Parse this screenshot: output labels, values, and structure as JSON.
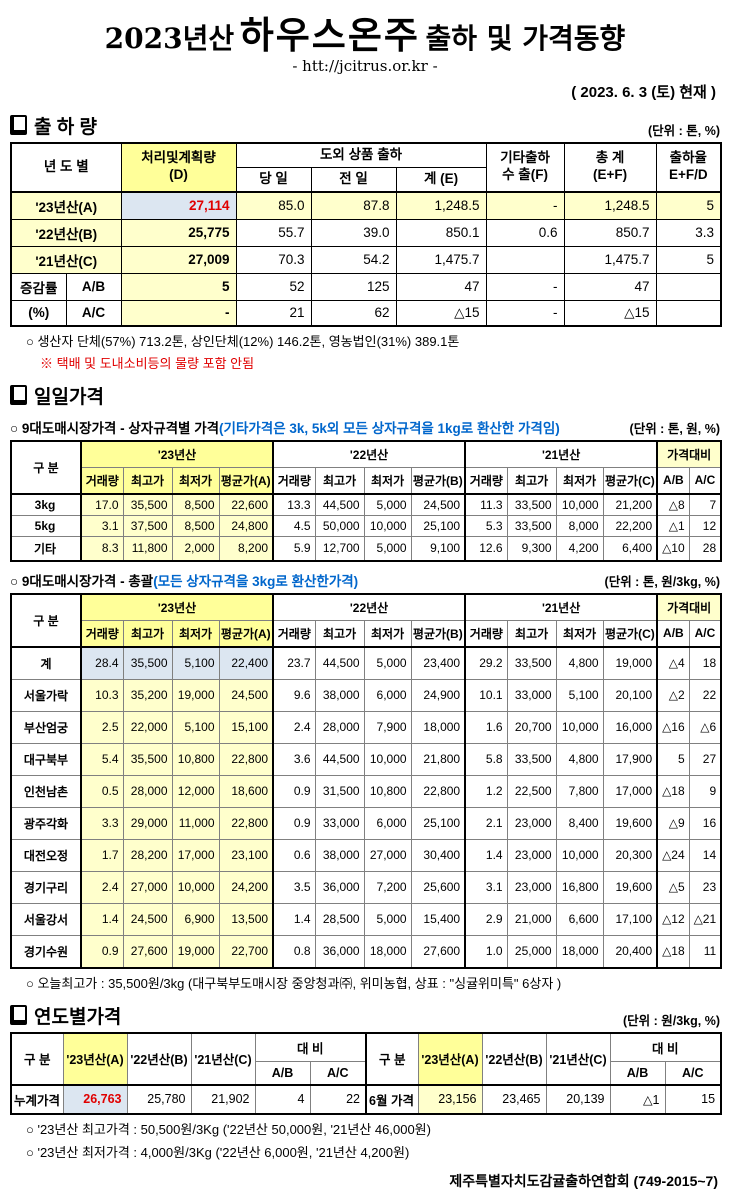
{
  "header": {
    "title_year": "2023년산",
    "title_product": "하우스온주",
    "title_rest": "출하 및 가격동향",
    "url": "- htt://jcitrus.or.kr -",
    "date": "( 2023. 6. 3 (토) 현재 )"
  },
  "shipment": {
    "heading": "출 하 량",
    "unit": "(단위 : 톤, %)",
    "headers": {
      "year": "년 도 별",
      "plan_l1": "처리및계획량",
      "plan_l2": "(D)",
      "group": "도외 상품 출하",
      "day": "당 일",
      "prev": "전 일",
      "sum": "계 (E)",
      "etc_l1": "기타출하",
      "etc_l2": "수 출(F)",
      "total_l1": "총  계",
      "total_l2": "(E+F)",
      "rate_l1": "출하율",
      "rate_l2": "E+F/D"
    },
    "rows": [
      {
        "label": "'23년산(A)",
        "current": true,
        "cells": [
          "27,114",
          "85.0",
          "87.8",
          "1,248.5",
          "-",
          "1,248.5",
          "5"
        ]
      },
      {
        "label": "'22년산(B)",
        "cells": [
          "25,775",
          "55.7",
          "39.0",
          "850.1",
          "0.6",
          "850.7",
          "3.3"
        ]
      },
      {
        "label": "'21년산(C)",
        "cells": [
          "27,009",
          "70.3",
          "54.2",
          "1,475.7",
          "",
          "1,475.7",
          "5"
        ]
      }
    ],
    "change_rows": [
      {
        "labels": [
          "증감률",
          "A/B"
        ],
        "cells": [
          "5",
          "52",
          "125",
          "47",
          "-",
          "47",
          ""
        ]
      },
      {
        "labels": [
          "(%)",
          "A/C"
        ],
        "cells": [
          "-",
          "21",
          "62",
          "△15",
          "-",
          "△15",
          ""
        ]
      }
    ],
    "note1": "○ 생산자 단체(57%) 713.2톤,  상인단체(12%) 146.2톤, 영농법인(31%) 389.1톤",
    "note2": "※ 택배 및 도내소비등의 물량 포함 안됨"
  },
  "daily": {
    "heading": "일일가격",
    "price_headers": {
      "gubun": "구  분",
      "y23": "'23년산",
      "y22": "'22년산",
      "y21": "'21년산",
      "cmp": "가격대비",
      "qty": "거래량",
      "high": "최고가",
      "low": "최저가",
      "avg_a": "평균가(A)",
      "avg_b": "평균가(B)",
      "avg_c": "평균가(C)",
      "ab": "A/B",
      "ac": "A/C"
    },
    "by_size": {
      "title": "○ 9대도매시장가격 - 상자규격별 가격",
      "title_note": "(기타가격은 3k, 5k외 모든 상자규격을 1kg로 환산한 가격임)",
      "unit": "(단위 : 톤,  원, %)",
      "rows": [
        {
          "label": "3kg",
          "cells": [
            "17.0",
            "35,500",
            "8,500",
            "22,600",
            "13.3",
            "44,500",
            "5,000",
            "24,500",
            "11.3",
            "33,500",
            "10,000",
            "21,200",
            "△8",
            "7"
          ]
        },
        {
          "label": "5kg",
          "cells": [
            "3.1",
            "37,500",
            "8,500",
            "24,800",
            "4.5",
            "50,000",
            "10,000",
            "25,100",
            "5.3",
            "33,500",
            "8,000",
            "22,200",
            "△1",
            "12"
          ]
        },
        {
          "label": "기타",
          "cells": [
            "8.3",
            "11,800",
            "2,000",
            "8,200",
            "5.9",
            "12,700",
            "5,000",
            "9,100",
            "12.6",
            "9,300",
            "4,200",
            "6,400",
            "△10",
            "28"
          ]
        }
      ]
    },
    "overall": {
      "title": "○ 9대도매시장가격 - 총괄",
      "title_note": "(모든 상자규격을 3kg로 환산한가격)",
      "unit": "(단위 : 톤, 원/3kg, %)",
      "rows": [
        {
          "label": "계",
          "highlight": true,
          "cells": [
            "28.4",
            "35,500",
            "5,100",
            "22,400",
            "23.7",
            "44,500",
            "5,000",
            "23,400",
            "29.2",
            "33,500",
            "4,800",
            "19,000",
            "△4",
            "18"
          ]
        },
        {
          "label": "서울가락",
          "cells": [
            "10.3",
            "35,200",
            "19,000",
            "24,500",
            "9.6",
            "38,000",
            "6,000",
            "24,900",
            "10.1",
            "33,000",
            "5,100",
            "20,100",
            "△2",
            "22"
          ]
        },
        {
          "label": "부산엄궁",
          "cells": [
            "2.5",
            "22,000",
            "5,100",
            "15,100",
            "2.4",
            "28,000",
            "7,900",
            "18,000",
            "1.6",
            "20,700",
            "10,000",
            "16,000",
            "△16",
            "△6"
          ]
        },
        {
          "label": "대구북부",
          "cells": [
            "5.4",
            "35,500",
            "10,800",
            "22,800",
            "3.6",
            "44,500",
            "10,000",
            "21,800",
            "5.8",
            "33,500",
            "4,800",
            "17,900",
            "5",
            "27"
          ]
        },
        {
          "label": "인천남촌",
          "cells": [
            "0.5",
            "28,000",
            "12,000",
            "18,600",
            "0.9",
            "31,500",
            "10,800",
            "22,800",
            "1.2",
            "22,500",
            "7,800",
            "17,000",
            "△18",
            "9"
          ]
        },
        {
          "label": "광주각화",
          "cells": [
            "3.3",
            "29,000",
            "11,000",
            "22,800",
            "0.9",
            "33,000",
            "6,000",
            "25,100",
            "2.1",
            "23,000",
            "8,400",
            "19,600",
            "△9",
            "16"
          ]
        },
        {
          "label": "대전오정",
          "cells": [
            "1.7",
            "28,200",
            "17,000",
            "23,100",
            "0.6",
            "38,000",
            "27,000",
            "30,400",
            "1.4",
            "23,000",
            "10,000",
            "20,300",
            "△24",
            "14"
          ]
        },
        {
          "label": "경기구리",
          "cells": [
            "2.4",
            "27,000",
            "10,000",
            "24,200",
            "3.5",
            "36,000",
            "7,200",
            "25,600",
            "3.1",
            "23,000",
            "16,800",
            "19,600",
            "△5",
            "23"
          ]
        },
        {
          "label": "서울강서",
          "cells": [
            "1.4",
            "24,500",
            "6,900",
            "13,500",
            "1.4",
            "28,500",
            "5,000",
            "15,400",
            "2.9",
            "21,000",
            "6,600",
            "17,100",
            "△12",
            "△21"
          ]
        },
        {
          "label": "경기수원",
          "cells": [
            "0.9",
            "27,600",
            "19,000",
            "22,700",
            "0.8",
            "36,000",
            "18,000",
            "27,600",
            "1.0",
            "25,000",
            "18,000",
            "20,400",
            "△18",
            "11"
          ]
        }
      ],
      "note": "○ 오늘최고가 : 35,500원/3kg (대구북부도매시장 중앙청과㈜, 위미농협, 상표 : \"싱귤위미특\" 6상자 )"
    }
  },
  "yearly": {
    "heading": "연도별가격",
    "unit": "(단위 : 원/3kg, %)",
    "headers": {
      "gubun": "구  분",
      "a": "'23년산(A)",
      "b": "'22년산(B)",
      "c": "'21년산(C)",
      "daebi": "대  비",
      "ab": "A/B",
      "ac": "A/C"
    },
    "left": {
      "label": "누계가격",
      "values": [
        "26,763",
        "25,780",
        "21,902",
        "4",
        "22"
      ]
    },
    "right": {
      "label": "6월 가격",
      "values": [
        "23,156",
        "23,465",
        "20,139",
        "△1",
        "15"
      ]
    },
    "note1": "○ '23년산 최고가격 : 50,500원/3Kg ('22년산 50,000원, '21년산 46,000원)",
    "note2": "○ '23년산 최저가격 :   4,000원/3Kg ('22년산   6,000원, '21년산  4,200원)"
  },
  "footer": "제주특별자치도감귤출하연합회 (749-2015~7)"
}
